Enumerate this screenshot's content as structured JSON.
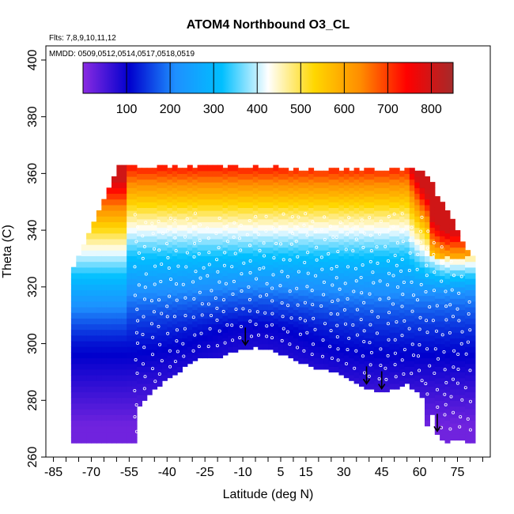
{
  "chart_data": {
    "type": "heatmap",
    "title": "ATOM4 Northbound O3_CL",
    "annotations": [
      "Flts: 7,8,9,10,11,12",
      "MMDD: 0509,0512,0514,0517,0518,0519"
    ],
    "xlabel": "Latitude (deg N)",
    "ylabel": "Theta (C)",
    "xlim": [
      -88,
      88
    ],
    "ylim": [
      260,
      405
    ],
    "x_ticks": [
      -85,
      -70,
      -55,
      -40,
      -25,
      -10,
      5,
      15,
      30,
      45,
      60,
      75
    ],
    "y_ticks": [
      260,
      280,
      300,
      320,
      340,
      360,
      380,
      400
    ],
    "colorbar": {
      "range": [
        0,
        850
      ],
      "ticks": [
        100,
        200,
        300,
        400,
        500,
        600,
        700,
        800
      ],
      "colors": [
        "#8a2be2",
        "#0000cd",
        "#1e90ff",
        "#00bfff",
        "#ffffff",
        "#ffd700",
        "#ff8c00",
        "#ff0000",
        "#a52a2a"
      ]
    },
    "surface_boundary": [
      [
        -78,
        265
      ],
      [
        -53,
        265
      ],
      [
        -53,
        276
      ],
      [
        -50,
        280
      ],
      [
        -45,
        284
      ],
      [
        -40,
        288
      ],
      [
        -33,
        292
      ],
      [
        -28,
        295
      ],
      [
        -22,
        295
      ],
      [
        -12,
        298
      ],
      [
        -5,
        299
      ],
      [
        2,
        298
      ],
      [
        10,
        295
      ],
      [
        18,
        292
      ],
      [
        28,
        290
      ],
      [
        38,
        285
      ],
      [
        45,
        283
      ],
      [
        55,
        286
      ],
      [
        58,
        284
      ],
      [
        62,
        280
      ],
      [
        63,
        271
      ],
      [
        65,
        275
      ],
      [
        67,
        268
      ],
      [
        70,
        265
      ],
      [
        74,
        267
      ],
      [
        80,
        265
      ],
      [
        82,
        265
      ]
    ],
    "arrows_x": [
      -9,
      39,
      45,
      67
    ]
  }
}
